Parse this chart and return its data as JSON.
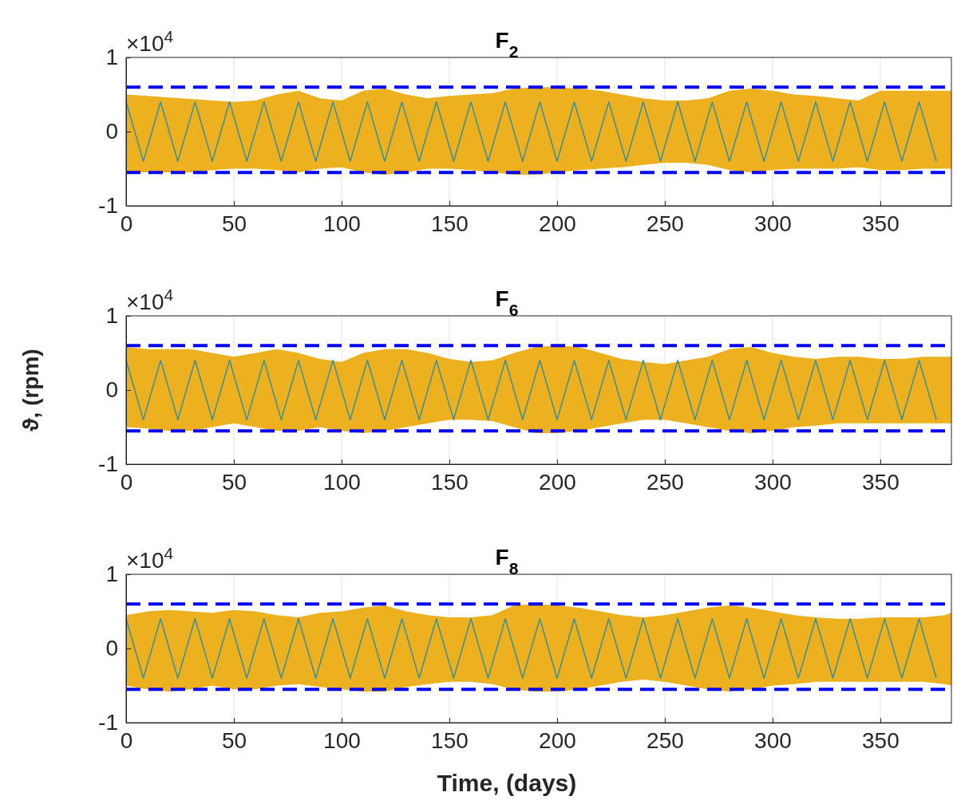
{
  "chart_data": [
    {
      "type": "area",
      "title": "F$_{2}$",
      "annotations": [
        "×10$^{4}$"
      ],
      "xlim": [
        0,
        383
      ],
      "xticks": [
        0,
        50,
        100,
        150,
        200,
        250,
        300,
        350
      ],
      "ylim": [
        -1,
        1
      ],
      "yticks": [
        -1,
        0,
        1
      ],
      "grid": "x",
      "x": [
        0,
        10,
        20,
        30,
        40,
        50,
        60,
        70,
        80,
        90,
        100,
        110,
        120,
        130,
        140,
        150,
        160,
        170,
        180,
        190,
        200,
        210,
        220,
        230,
        240,
        250,
        260,
        270,
        280,
        290,
        300,
        310,
        320,
        330,
        340,
        350,
        360,
        370,
        380,
        383
      ],
      "series": [
        {
          "color": "#edb120",
          "values": [
            0.5,
            0.48,
            0.46,
            0.44,
            0.42,
            0.4,
            0.42,
            0.5,
            0.55,
            0.45,
            0.42,
            0.55,
            0.58,
            0.5,
            0.45,
            0.48,
            0.5,
            0.52,
            0.58,
            0.6,
            0.6,
            0.58,
            0.55,
            0.5,
            0.45,
            0.42,
            0.42,
            0.45,
            0.55,
            0.58,
            0.55,
            0.5,
            0.48,
            0.45,
            0.42,
            0.55,
            0.55,
            0.55,
            0.55,
            0.55
          ]
        },
        {
          "color": "#edb120",
          "values": [
            -0.55,
            -0.55,
            -0.55,
            -0.55,
            -0.52,
            -0.5,
            -0.5,
            -0.52,
            -0.55,
            -0.5,
            -0.48,
            -0.55,
            -0.58,
            -0.55,
            -0.5,
            -0.5,
            -0.52,
            -0.55,
            -0.58,
            -0.58,
            -0.55,
            -0.52,
            -0.5,
            -0.48,
            -0.45,
            -0.42,
            -0.42,
            -0.45,
            -0.52,
            -0.55,
            -0.52,
            -0.5,
            -0.5,
            -0.5,
            -0.48,
            -0.52,
            -0.52,
            -0.5,
            -0.5,
            -0.5
          ]
        },
        {
          "type": "line",
          "color": "#3a8f9b",
          "x": [
            0,
            8,
            16,
            24,
            32,
            40,
            48,
            56,
            64,
            72,
            80,
            88,
            96,
            104,
            112,
            120,
            128,
            136,
            144,
            152,
            160,
            168,
            176,
            184,
            192,
            200,
            208,
            216,
            224,
            232,
            240,
            248,
            256,
            264,
            272,
            280,
            288,
            296,
            304,
            312,
            320,
            328,
            336,
            344,
            352,
            360,
            368,
            376
          ],
          "values": [
            0.4,
            -0.4,
            0.4,
            -0.4,
            0.4,
            -0.4,
            0.4,
            -0.4,
            0.4,
            -0.4,
            0.4,
            -0.4,
            0.4,
            -0.4,
            0.4,
            -0.4,
            0.4,
            -0.4,
            0.4,
            -0.4,
            0.4,
            -0.4,
            0.4,
            -0.4,
            0.4,
            -0.4,
            0.4,
            -0.4,
            0.4,
            -0.4,
            0.4,
            -0.4,
            0.4,
            -0.4,
            0.4,
            -0.4,
            0.4,
            -0.4,
            0.4,
            -0.4,
            0.4,
            -0.4,
            0.4,
            -0.4,
            0.4,
            -0.4,
            0.4,
            -0.4
          ]
        }
      ],
      "ref_lines": [
        {
          "axis": "y",
          "value": 0.6,
          "color": "#0000ff",
          "line_style": "dashed"
        },
        {
          "axis": "y",
          "value": -0.55,
          "color": "#0000ff",
          "line_style": "dashed"
        }
      ]
    },
    {
      "type": "area",
      "title": "F$_{6}$",
      "ylabel": "ϑ, (rpm)",
      "annotations": [
        "×10$^{4}$"
      ],
      "xlim": [
        0,
        383
      ],
      "xticks": [
        0,
        50,
        100,
        150,
        200,
        250,
        300,
        350
      ],
      "ylim": [
        -1,
        1
      ],
      "yticks": [
        -1,
        0,
        1
      ],
      "grid": "x",
      "x": [
        0,
        10,
        20,
        30,
        40,
        50,
        60,
        70,
        80,
        90,
        100,
        110,
        120,
        130,
        140,
        150,
        160,
        170,
        180,
        190,
        200,
        210,
        220,
        230,
        240,
        250,
        260,
        270,
        280,
        290,
        300,
        310,
        320,
        330,
        340,
        350,
        360,
        370,
        380,
        383
      ],
      "series": [
        {
          "color": "#edb120",
          "values": [
            0.58,
            0.55,
            0.55,
            0.55,
            0.5,
            0.45,
            0.5,
            0.55,
            0.5,
            0.42,
            0.38,
            0.5,
            0.55,
            0.55,
            0.5,
            0.42,
            0.38,
            0.4,
            0.5,
            0.58,
            0.6,
            0.58,
            0.5,
            0.42,
            0.38,
            0.35,
            0.4,
            0.45,
            0.55,
            0.58,
            0.5,
            0.45,
            0.42,
            0.45,
            0.45,
            0.42,
            0.42,
            0.45,
            0.45,
            0.45
          ]
        },
        {
          "color": "#edb120",
          "values": [
            -0.5,
            -0.52,
            -0.55,
            -0.55,
            -0.5,
            -0.45,
            -0.5,
            -0.55,
            -0.55,
            -0.5,
            -0.55,
            -0.58,
            -0.55,
            -0.5,
            -0.45,
            -0.4,
            -0.4,
            -0.42,
            -0.5,
            -0.58,
            -0.58,
            -0.55,
            -0.5,
            -0.45,
            -0.4,
            -0.4,
            -0.45,
            -0.5,
            -0.55,
            -0.58,
            -0.55,
            -0.5,
            -0.48,
            -0.45,
            -0.45,
            -0.45,
            -0.45,
            -0.45,
            -0.45,
            -0.45
          ]
        },
        {
          "type": "line",
          "color": "#3a8f9b",
          "x": [
            0,
            8,
            16,
            24,
            32,
            40,
            48,
            56,
            64,
            72,
            80,
            88,
            96,
            104,
            112,
            120,
            128,
            136,
            144,
            152,
            160,
            168,
            176,
            184,
            192,
            200,
            208,
            216,
            224,
            232,
            240,
            248,
            256,
            264,
            272,
            280,
            288,
            296,
            304,
            312,
            320,
            328,
            336,
            344,
            352,
            360,
            368,
            376
          ],
          "values": [
            0.4,
            -0.4,
            0.4,
            -0.4,
            0.4,
            -0.4,
            0.4,
            -0.4,
            0.4,
            -0.4,
            0.4,
            -0.4,
            0.4,
            -0.4,
            0.4,
            -0.4,
            0.4,
            -0.4,
            0.4,
            -0.4,
            0.4,
            -0.4,
            0.4,
            -0.4,
            0.4,
            -0.4,
            0.4,
            -0.4,
            0.4,
            -0.4,
            0.4,
            -0.4,
            0.4,
            -0.4,
            0.4,
            -0.4,
            0.4,
            -0.4,
            0.4,
            -0.4,
            0.4,
            -0.4,
            0.4,
            -0.4,
            0.4,
            -0.4,
            0.4,
            -0.4
          ]
        }
      ],
      "ref_lines": [
        {
          "axis": "y",
          "value": 0.6,
          "color": "#0000ff",
          "line_style": "dashed"
        },
        {
          "axis": "y",
          "value": -0.55,
          "color": "#0000ff",
          "line_style": "dashed"
        }
      ]
    },
    {
      "type": "area",
      "title": "F$_{8}$",
      "xlabel": "Time, (days)",
      "annotations": [
        "×10$^{4}$"
      ],
      "xlim": [
        0,
        383
      ],
      "xticks": [
        0,
        50,
        100,
        150,
        200,
        250,
        300,
        350
      ],
      "ylim": [
        -1,
        1
      ],
      "yticks": [
        -1,
        0,
        1
      ],
      "grid": "x",
      "x": [
        0,
        10,
        20,
        30,
        40,
        50,
        60,
        70,
        80,
        90,
        100,
        110,
        120,
        130,
        140,
        150,
        160,
        170,
        180,
        190,
        200,
        210,
        220,
        230,
        240,
        250,
        260,
        270,
        280,
        290,
        300,
        310,
        320,
        330,
        340,
        350,
        360,
        370,
        380,
        383
      ],
      "series": [
        {
          "color": "#edb120",
          "values": [
            0.45,
            0.5,
            0.52,
            0.5,
            0.48,
            0.52,
            0.5,
            0.45,
            0.42,
            0.48,
            0.5,
            0.55,
            0.58,
            0.5,
            0.45,
            0.42,
            0.42,
            0.45,
            0.58,
            0.6,
            0.58,
            0.55,
            0.5,
            0.45,
            0.42,
            0.45,
            0.5,
            0.55,
            0.58,
            0.55,
            0.5,
            0.45,
            0.42,
            0.4,
            0.4,
            0.42,
            0.42,
            0.42,
            0.45,
            0.48
          ]
        },
        {
          "color": "#edb120",
          "values": [
            -0.5,
            -0.55,
            -0.58,
            -0.55,
            -0.5,
            -0.55,
            -0.55,
            -0.5,
            -0.48,
            -0.52,
            -0.55,
            -0.58,
            -0.58,
            -0.52,
            -0.48,
            -0.45,
            -0.45,
            -0.48,
            -0.55,
            -0.58,
            -0.58,
            -0.55,
            -0.5,
            -0.45,
            -0.42,
            -0.45,
            -0.5,
            -0.55,
            -0.58,
            -0.55,
            -0.5,
            -0.48,
            -0.45,
            -0.45,
            -0.45,
            -0.45,
            -0.45,
            -0.45,
            -0.48,
            -0.5
          ]
        },
        {
          "type": "line",
          "color": "#3a8f9b",
          "x": [
            0,
            8,
            16,
            24,
            32,
            40,
            48,
            56,
            64,
            72,
            80,
            88,
            96,
            104,
            112,
            120,
            128,
            136,
            144,
            152,
            160,
            168,
            176,
            184,
            192,
            200,
            208,
            216,
            224,
            232,
            240,
            248,
            256,
            264,
            272,
            280,
            288,
            296,
            304,
            312,
            320,
            328,
            336,
            344,
            352,
            360,
            368,
            376
          ],
          "values": [
            0.4,
            -0.4,
            0.4,
            -0.4,
            0.4,
            -0.4,
            0.4,
            -0.4,
            0.4,
            -0.4,
            0.4,
            -0.4,
            0.4,
            -0.4,
            0.4,
            -0.4,
            0.4,
            -0.4,
            0.4,
            -0.4,
            0.4,
            -0.4,
            0.4,
            -0.4,
            0.4,
            -0.4,
            0.4,
            -0.4,
            0.4,
            -0.4,
            0.4,
            -0.4,
            0.4,
            -0.4,
            0.4,
            -0.4,
            0.4,
            -0.4,
            0.4,
            -0.4,
            0.4,
            -0.4,
            0.4,
            -0.4,
            0.4,
            -0.4,
            0.4,
            -0.4
          ]
        }
      ],
      "ref_lines": [
        {
          "axis": "y",
          "value": 0.6,
          "color": "#0000ff",
          "line_style": "dashed"
        },
        {
          "axis": "y",
          "value": -0.55,
          "color": "#0000ff",
          "line_style": "dashed"
        }
      ]
    }
  ]
}
